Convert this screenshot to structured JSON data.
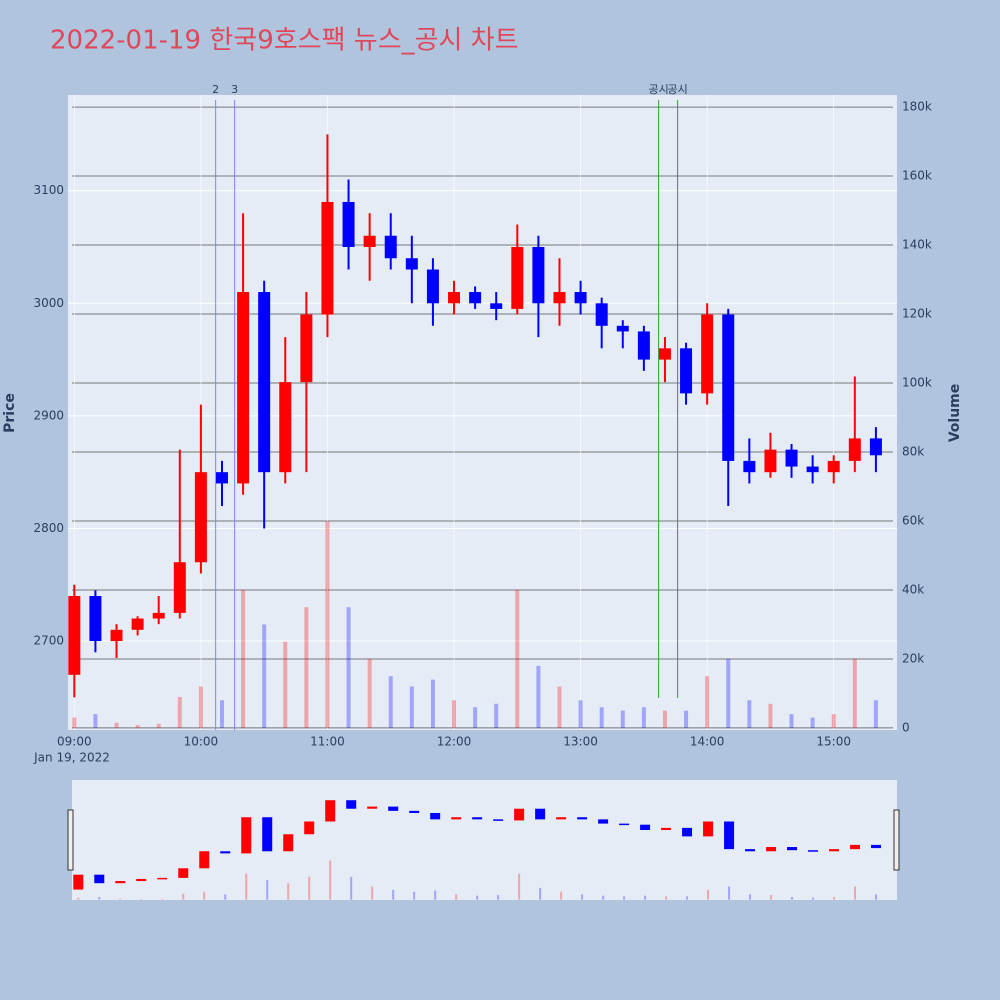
{
  "chart_data": {
    "type": "candlestick",
    "title": "2022-01-19 한국9호스팩 뉴스_공시 차트",
    "y_label": "Price",
    "y2_label": "Volume",
    "x_date_label": "Jan 19, 2022",
    "increasing_color": "#ff0000",
    "decreasing_color": "#0000ff",
    "x": [
      "09:00",
      "09:10",
      "09:20",
      "09:30",
      "09:40",
      "09:50",
      "10:00",
      "10:10",
      "10:20",
      "10:30",
      "10:40",
      "10:50",
      "11:00",
      "11:10",
      "11:20",
      "11:30",
      "11:40",
      "11:50",
      "12:00",
      "12:10",
      "12:20",
      "12:30",
      "12:40",
      "12:50",
      "13:00",
      "13:10",
      "13:20",
      "13:30",
      "13:40",
      "13:50",
      "14:00",
      "14:10",
      "14:20",
      "14:30",
      "14:40",
      "14:50",
      "15:00",
      "15:10",
      "15:20"
    ],
    "open": [
      2670,
      2740,
      2700,
      2710,
      2720,
      2725,
      2770,
      2850,
      2840,
      3010,
      2850,
      2930,
      2990,
      3090,
      3050,
      3060,
      3040,
      3030,
      3000,
      3010,
      3000,
      2995,
      3050,
      3000,
      3010,
      3000,
      2980,
      2975,
      2950,
      2960,
      2920,
      2990,
      2860,
      2850,
      2870,
      2855,
      2850,
      2860,
      2880
    ],
    "high": [
      2750,
      2745,
      2715,
      2722,
      2740,
      2870,
      2910,
      2860,
      3080,
      3020,
      2970,
      3010,
      3150,
      3110,
      3080,
      3080,
      3060,
      3040,
      3020,
      3015,
      3010,
      3070,
      3060,
      3040,
      3020,
      3005,
      2985,
      2980,
      2970,
      2965,
      3000,
      2995,
      2880,
      2885,
      2875,
      2865,
      2865,
      2935,
      2890
    ],
    "low": [
      2650,
      2690,
      2685,
      2705,
      2715,
      2720,
      2760,
      2820,
      2830,
      2800,
      2840,
      2850,
      2970,
      3030,
      3020,
      3030,
      3000,
      2980,
      2990,
      2995,
      2985,
      2990,
      2970,
      2980,
      2990,
      2960,
      2960,
      2940,
      2930,
      2910,
      2910,
      2820,
      2840,
      2845,
      2845,
      2840,
      2840,
      2850,
      2850
    ],
    "close": [
      2740,
      2700,
      2710,
      2720,
      2725,
      2770,
      2850,
      2840,
      3010,
      2850,
      2930,
      2990,
      3090,
      3050,
      3060,
      3040,
      3030,
      3000,
      3010,
      3000,
      2995,
      3050,
      3000,
      3010,
      3000,
      2980,
      2975,
      2950,
      2960,
      2920,
      2990,
      2860,
      2850,
      2870,
      2855,
      2850,
      2860,
      2880,
      2865
    ],
    "volume": [
      3000,
      4000,
      1500,
      800,
      1200,
      9000,
      12000,
      8000,
      40000,
      30000,
      25000,
      35000,
      60000,
      35000,
      20000,
      15000,
      12000,
      14000,
      8000,
      6000,
      7000,
      40000,
      18000,
      12000,
      8000,
      6000,
      5000,
      6000,
      5000,
      5000,
      15000,
      20000,
      8000,
      7000,
      4000,
      3000,
      4000,
      20000,
      8000
    ],
    "xlim": [
      "08:57",
      "15:30"
    ],
    "xticks": [
      "09:00",
      "10:00",
      "11:00",
      "12:00",
      "13:00",
      "14:00",
      "15:00"
    ],
    "ylim": [
      2621,
      3185
    ],
    "yticks": [
      2700,
      2800,
      2900,
      3000,
      3100
    ],
    "y2lim": [
      -600,
      183500
    ],
    "y2ticks": [
      0,
      {
        "value": 20000,
        "label": "20k"
      },
      {
        "value": 40000,
        "label": "40k"
      },
      {
        "value": 60000,
        "label": "60k"
      },
      {
        "value": 80000,
        "label": "80k"
      },
      {
        "value": 100000,
        "label": "100k"
      },
      {
        "value": 120000,
        "label": "120k"
      },
      {
        "value": 140000,
        "label": "140k"
      },
      {
        "value": 160000,
        "label": "160k"
      },
      {
        "value": 180000,
        "label": "180k"
      }
    ],
    "annotations": [
      {
        "x": "10:07",
        "label": "2",
        "color": "#8080ff"
      },
      {
        "x": "10:16",
        "label": "3",
        "color": "#8080ff"
      },
      {
        "x": "13:37",
        "label": "공시",
        "color": "#2ca02c"
      },
      {
        "x": "13:46",
        "label": "공시",
        "color": "#2ca02c"
      }
    ]
  }
}
